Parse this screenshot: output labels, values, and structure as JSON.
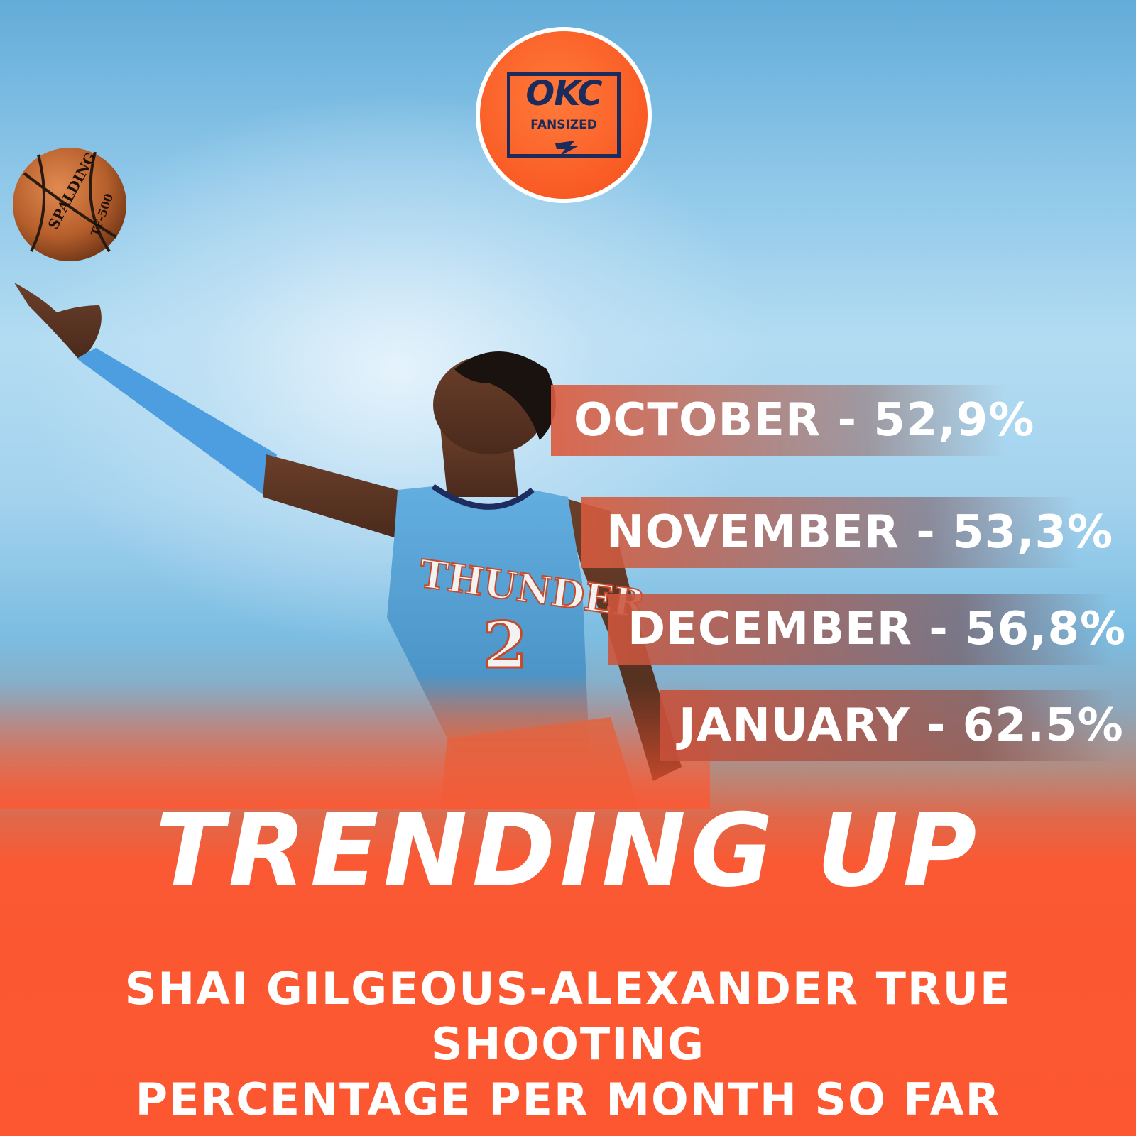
{
  "logo": {
    "line1": "OKC",
    "line2": "FANSIZED",
    "brand_color": "#f95b24",
    "ink_color": "#1a2b5c"
  },
  "stats": [
    {
      "month": "OCTOBER",
      "value": "52,9%",
      "label": "OCTOBER - 52,9%"
    },
    {
      "month": "NOVEMBER",
      "value": "53,3%",
      "label": "NOVEMBER - 53,3%"
    },
    {
      "month": "DECEMBER",
      "value": "56,8%",
      "label": "DECEMBER - 56,8%"
    },
    {
      "month": "JANUARY",
      "value": "62.5%",
      "label": "JANUARY - 62.5%"
    }
  ],
  "headline": "TRENDING UP",
  "subtitle_line1": "SHAI GILGEOUS-ALEXANDER TRUE SHOOTING",
  "subtitle_line2": "PERCENTAGE PER MONTH SO FAR",
  "photo": {
    "jersey_text": "THUNDER",
    "jersey_number": "2",
    "ball_brand": "SPALDING",
    "ball_model": "TF-500"
  },
  "colors": {
    "sky_blue": "#63acd9",
    "orange": "#fd5731",
    "jersey": "#5aa7d8"
  }
}
